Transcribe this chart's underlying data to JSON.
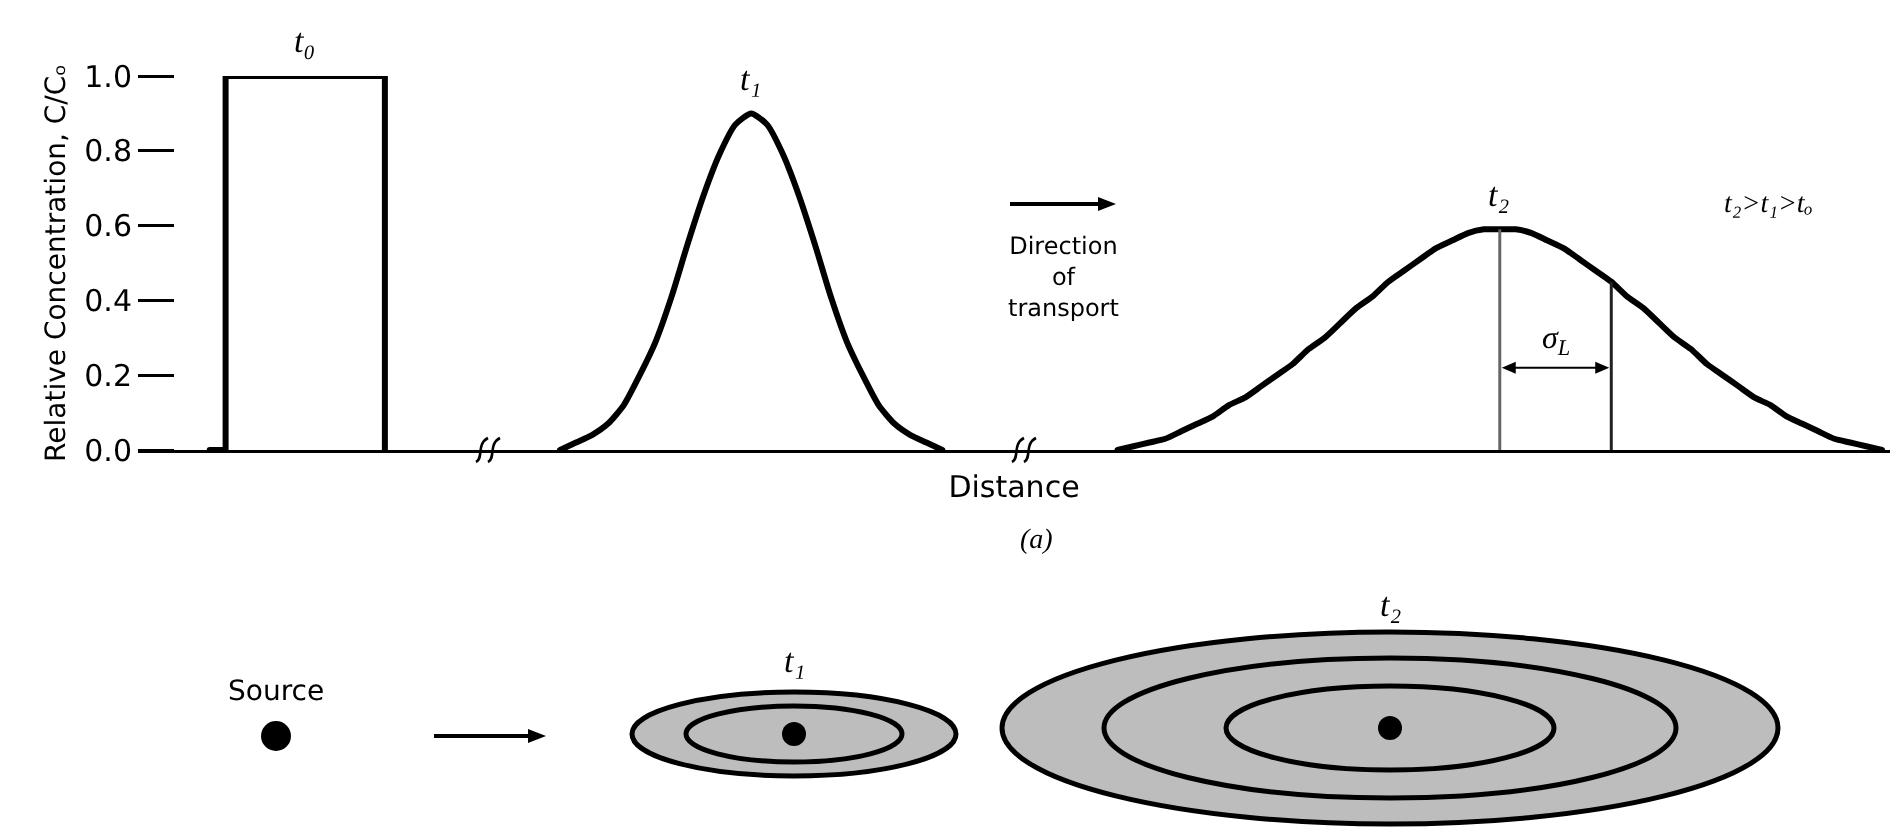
{
  "chart_data": {
    "type": "line",
    "ylabel": "Relative Concentration, C/Cₒ",
    "xlabel": "Distance",
    "annotations": [
      "t₂>t₁>tₒ",
      "Direction of transport",
      "σ$_{L}$",
      "(a)",
      "Source",
      "t₁",
      "t₂"
    ],
    "categories": [
      null,
      null,
      null,
      null,
      null,
      null,
      null,
      null,
      null,
      null,
      null,
      null,
      null,
      null,
      null,
      null,
      null,
      null,
      null,
      null,
      null,
      null,
      null,
      null,
      null,
      null,
      null,
      null,
      null,
      null,
      null,
      null,
      null,
      null,
      null,
      null,
      null,
      null,
      null,
      null,
      null,
      null,
      null,
      null,
      null,
      null,
      null,
      null,
      null,
      null,
      null,
      null,
      null,
      null,
      null,
      null,
      null,
      null,
      null,
      null,
      null,
      null,
      null,
      null,
      null,
      null,
      null,
      null,
      null,
      null,
      null,
      null,
      null,
      null,
      null,
      null,
      null,
      null,
      null,
      null,
      null,
      null,
      null,
      null,
      null,
      null,
      null,
      null,
      null,
      null,
      null,
      null,
      null,
      null,
      null,
      null,
      null,
      null,
      null,
      null,
      null,
      null,
      null,
      null,
      null,
      null,
      null,
      null,
      null,
      null
    ],
    "series": [
      {
        "name": "t₀",
        "type": "step",
        "color": "#000000",
        "values": [
          null,
          null,
          null,
          null,
          0,
          1,
          1,
          1,
          1,
          1,
          1,
          1,
          1,
          1,
          1,
          0,
          null,
          null,
          null,
          null,
          null,
          null,
          null,
          null,
          null,
          null,
          null,
          null,
          null,
          null,
          null,
          null,
          null,
          null,
          null,
          null,
          null,
          null,
          null,
          null,
          null,
          null,
          null,
          null,
          null,
          null,
          null,
          null,
          null,
          null,
          null,
          null,
          null,
          null,
          null,
          null,
          null,
          null,
          null,
          null,
          null,
          null,
          null,
          null,
          null,
          null,
          null,
          null,
          null,
          null,
          null,
          null,
          null,
          null,
          null,
          null,
          null,
          null,
          null,
          null,
          null,
          null,
          null,
          null,
          null,
          null,
          null,
          null,
          null,
          null,
          null,
          null,
          null,
          null,
          null,
          null,
          null,
          null,
          null,
          null,
          null,
          null,
          null,
          null,
          null,
          null,
          null,
          null,
          null,
          null
        ]
      },
      {
        "name": "t₁",
        "type": "line",
        "color": "#000000",
        "values": [
          null,
          null,
          null,
          null,
          null,
          null,
          null,
          null,
          null,
          null,
          null,
          null,
          null,
          null,
          null,
          null,
          null,
          null,
          null,
          null,
          null,
          null,
          null,
          null,
          null,
          null,
          0,
          0.02,
          0.04,
          0.07,
          0.12,
          0.2,
          0.29,
          0.41,
          0.55,
          0.68,
          0.79,
          0.87,
          0.9,
          0.87,
          0.79,
          0.68,
          0.55,
          0.41,
          0.29,
          0.2,
          0.12,
          0.07,
          0.04,
          0.02,
          0,
          null,
          null,
          null,
          null,
          null,
          null,
          null,
          null,
          null,
          null,
          null,
          null,
          null,
          null,
          null,
          null,
          null,
          null,
          null,
          null,
          null,
          null,
          null,
          null,
          null,
          null,
          null,
          null,
          null,
          null,
          null,
          null,
          null,
          null,
          null,
          null,
          null,
          null,
          null,
          null,
          null,
          null,
          null,
          null,
          null,
          null,
          null,
          null,
          null,
          null,
          null,
          null,
          null,
          null,
          null,
          null,
          null,
          null,
          null
        ]
      },
      {
        "name": "t₂",
        "type": "line",
        "color": "#000000",
        "values": [
          null,
          null,
          null,
          null,
          null,
          null,
          null,
          null,
          null,
          null,
          null,
          null,
          null,
          null,
          null,
          null,
          null,
          null,
          null,
          null,
          null,
          null,
          null,
          null,
          null,
          null,
          null,
          null,
          null,
          null,
          null,
          null,
          null,
          null,
          null,
          null,
          null,
          null,
          null,
          null,
          null,
          null,
          null,
          null,
          null,
          null,
          null,
          null,
          null,
          null,
          null,
          null,
          null,
          null,
          null,
          null,
          null,
          null,
          null,
          null,
          null,
          0,
          0.01,
          0.02,
          0.03,
          0.05,
          0.07,
          0.09,
          0.12,
          0.14,
          0.17,
          0.2,
          0.23,
          0.27,
          0.3,
          0.34,
          0.38,
          0.41,
          0.45,
          0.48,
          0.51,
          0.54,
          0.56,
          0.58,
          0.59,
          0.59,
          0.59,
          0.58,
          0.56,
          0.54,
          0.51,
          0.48,
          0.45,
          0.41,
          0.38,
          0.34,
          0.3,
          0.27,
          0.23,
          0.2,
          0.17,
          0.14,
          0.12,
          0.09,
          0.07,
          0.05,
          0.03,
          0.02,
          0.01,
          0
        ]
      }
    ],
    "ylim": [
      0,
      1
    ],
    "yticks": [
      {
        "value": 0,
        "label": "0.0"
      },
      0.2,
      0.4,
      0.6,
      0.8,
      {
        "value": 1,
        "label": "1.0"
      }
    ],
    "tick_labels": "y",
    "legend": false,
    "line_style": "solid"
  }
}
